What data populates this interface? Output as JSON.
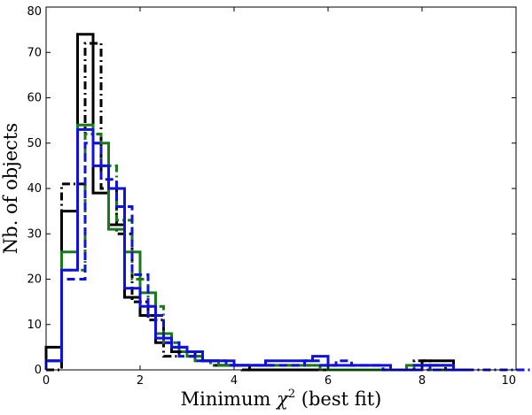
{
  "chart_data": {
    "type": "histogram",
    "xlabel_main": "Minimum ",
    "xlabel_symbol": "χ",
    "xlabel_sup": "2",
    "xlabel_tail": "  (best fit)",
    "ylabel": "Nb. of objects",
    "xlim": [
      0,
      10
    ],
    "ylim": [
      0,
      80
    ],
    "xticks": [
      0,
      2,
      4,
      6,
      8,
      10
    ],
    "yticks": [
      0,
      10,
      20,
      30,
      40,
      50,
      60,
      70,
      80
    ],
    "grid": false,
    "series": [
      {
        "name": "black solid",
        "color": "#000000",
        "style": "solid",
        "x": [
          0,
          0.33,
          0.67,
          1.0,
          1.33,
          1.67,
          2.0,
          2.33,
          2.67,
          3.0,
          3.33,
          3.67,
          4.0,
          4.33,
          4.67,
          5.0,
          5.33,
          5.67,
          6.0,
          6.33,
          6.67,
          7.0,
          7.33,
          7.67,
          8.0,
          8.33,
          8.67
        ],
        "y": [
          5,
          35,
          74,
          39,
          32,
          16,
          12,
          6,
          4,
          3,
          2,
          1,
          1,
          0,
          0,
          0,
          0,
          0,
          0,
          0,
          0,
          0,
          0,
          0,
          2,
          2,
          0
        ]
      },
      {
        "name": "black dash-dot",
        "color": "#000000",
        "style": "dashdot",
        "x": [
          0,
          0.33,
          0.5,
          0.83,
          1.17,
          1.5,
          1.83,
          2.17,
          2.5,
          2.83,
          3.17,
          3.5,
          3.83,
          4.17,
          4.5,
          4.83,
          5.17,
          5.5,
          5.83,
          6.17,
          6.5,
          6.83,
          7.17,
          7.5,
          7.83,
          8.17,
          8.5
        ],
        "y": [
          0,
          41,
          41,
          72,
          40,
          30,
          15,
          11,
          3,
          4,
          2,
          1,
          1,
          0,
          0,
          0,
          0,
          0,
          0,
          0,
          0,
          0,
          0,
          0,
          2,
          1,
          0
        ]
      },
      {
        "name": "green solid",
        "color": "#1a7a1a",
        "style": "solid",
        "x": [
          0,
          0.33,
          0.67,
          1.0,
          1.33,
          1.67,
          2.0,
          2.33,
          2.67,
          3.0,
          3.33,
          3.67,
          4.0,
          4.33,
          4.67,
          5.0,
          5.33,
          5.67,
          6.0,
          6.33,
          6.67,
          7.0,
          7.33,
          7.67,
          8.0,
          8.33,
          8.67
        ],
        "y": [
          2,
          26,
          54,
          50,
          31,
          26,
          17,
          8,
          5,
          3,
          2,
          1,
          1,
          1,
          1,
          1,
          1,
          1,
          0,
          0,
          0,
          0,
          0,
          1,
          1,
          1,
          0
        ]
      },
      {
        "name": "green dash-dot",
        "color": "#1a7a1a",
        "style": "dashdot",
        "x": [
          0,
          0.33,
          0.5,
          0.83,
          1.17,
          1.5,
          1.83,
          2.17,
          2.5,
          2.83,
          3.17,
          3.5,
          3.83,
          4.17,
          4.5,
          4.83,
          5.17,
          5.5,
          5.83,
          6.17,
          6.5,
          6.83,
          7.17,
          7.5,
          7.83,
          8.17,
          8.5
        ],
        "y": [
          2,
          22,
          22,
          52,
          45,
          33,
          20,
          14,
          6,
          4,
          2,
          1,
          1,
          1,
          1,
          1,
          1,
          1,
          0,
          0,
          0,
          0,
          0,
          0,
          1,
          0,
          0
        ]
      },
      {
        "name": "blue solid",
        "color": "#1010e0",
        "style": "solid",
        "x": [
          0,
          0.33,
          0.67,
          1.0,
          1.33,
          1.67,
          2.0,
          2.33,
          2.67,
          3.0,
          3.33,
          3.67,
          4.0,
          4.33,
          4.67,
          5.0,
          5.33,
          5.67,
          6.0,
          6.33,
          6.67,
          7.0,
          7.33,
          7.67,
          8.0,
          8.33,
          8.67
        ],
        "y": [
          2,
          22,
          53,
          45,
          40,
          18,
          14,
          7,
          5,
          4,
          2,
          2,
          1,
          1,
          2,
          2,
          2,
          3,
          1,
          1,
          1,
          1,
          0,
          0,
          1,
          1,
          0
        ]
      },
      {
        "name": "blue dashed",
        "color": "#1010e0",
        "style": "dashed",
        "x": [
          0,
          0.33,
          0.5,
          0.83,
          1.17,
          1.5,
          1.83,
          2.17,
          2.5,
          2.83,
          3.17,
          3.5,
          3.83,
          4.17,
          4.5,
          4.83,
          5.17,
          5.5,
          5.83,
          6.17,
          6.5,
          6.83,
          7.17,
          7.5,
          7.83,
          8.17,
          8.5
        ],
        "y": [
          2,
          20,
          20,
          50,
          42,
          36,
          21,
          12,
          6,
          3,
          2,
          2,
          1,
          1,
          1,
          1,
          1,
          2,
          1,
          2,
          1,
          1,
          0,
          0,
          1,
          0,
          0
        ]
      },
      {
        "name": "blue dash-dot",
        "color": "#1010e0",
        "style": "dashdot",
        "x": [
          7.5,
          8.5,
          9.0,
          10.0
        ],
        "y": [
          0,
          0,
          0,
          0
        ]
      }
    ]
  }
}
